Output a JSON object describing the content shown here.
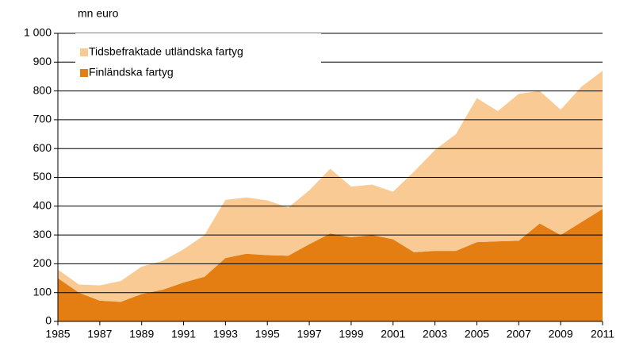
{
  "chart_data": {
    "type": "stacked_area",
    "y_label": "mn euro",
    "x": [
      1985,
      1986,
      1987,
      1988,
      1989,
      1990,
      1991,
      1992,
      1993,
      1994,
      1995,
      1996,
      1997,
      1998,
      1999,
      2000,
      2001,
      2002,
      2003,
      2004,
      2005,
      2006,
      2007,
      2008,
      2009,
      2010,
      2011
    ],
    "series": [
      {
        "name": "Finländska fartyg",
        "color": "#e47d12",
        "values": [
          150,
          100,
          72,
          68,
          95,
          110,
          135,
          155,
          220,
          235,
          230,
          228,
          268,
          305,
          292,
          300,
          285,
          240,
          245,
          245,
          275,
          278,
          280,
          340,
          300,
          345,
          390
        ]
      },
      {
        "name": "Tidsbefraktade utländska fartyg",
        "color": "#f9ca94",
        "values": [
          30,
          28,
          53,
          72,
          95,
          100,
          115,
          145,
          202,
          195,
          190,
          167,
          187,
          225,
          176,
          175,
          165,
          280,
          350,
          405,
          500,
          452,
          510,
          460,
          435,
          470,
          480
        ]
      }
    ],
    "xlim": [
      1985,
      2011
    ],
    "xticks": [
      1985,
      1987,
      1989,
      1991,
      1993,
      1995,
      1997,
      1999,
      2001,
      2003,
      2005,
      2007,
      2009,
      2011
    ],
    "ylim": [
      0,
      1000
    ],
    "yticks": [
      0,
      100,
      200,
      300,
      400,
      500,
      600,
      700,
      800,
      900,
      {
        "value": 1000,
        "label": "1 000"
      }
    ],
    "grid": true,
    "legend": "upper left"
  }
}
